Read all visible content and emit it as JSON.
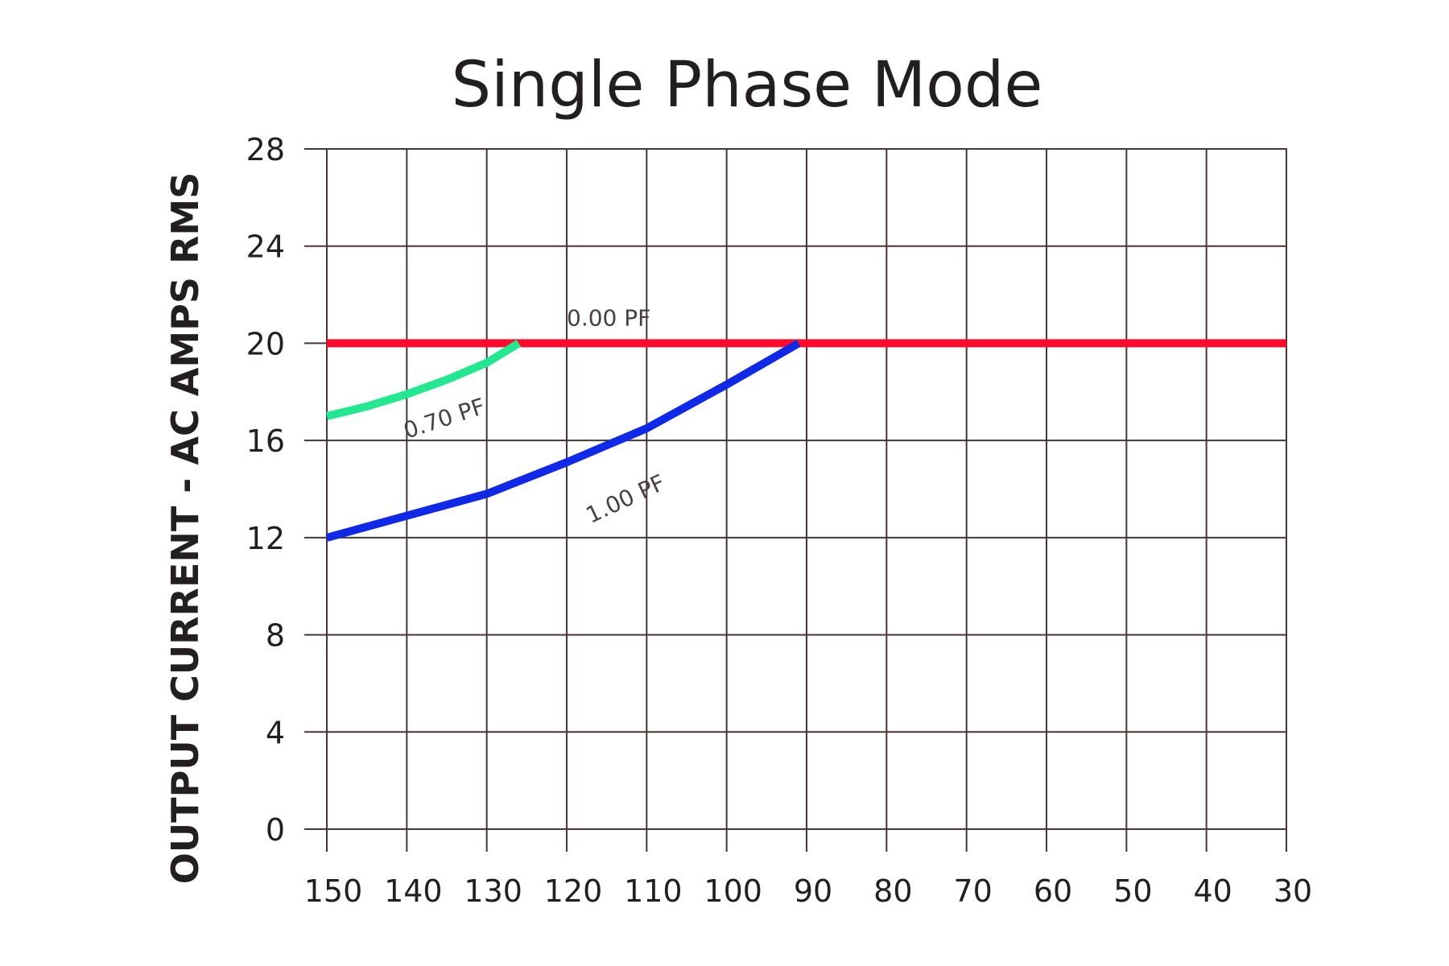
{
  "chart_data": {
    "type": "line",
    "title": "Single Phase Mode",
    "xlabel": "",
    "ylabel": "OUTPUT CURRENT - AC AMPS RMS",
    "xlim": [
      150,
      30
    ],
    "ylim": [
      0,
      28
    ],
    "x_ticks": [
      150,
      140,
      130,
      120,
      110,
      100,
      90,
      80,
      70,
      60,
      50,
      40,
      30
    ],
    "y_ticks": [
      0,
      4,
      8,
      12,
      16,
      20,
      24,
      28
    ],
    "grid": true,
    "legend": "none",
    "series": [
      {
        "name": "0.00  PF",
        "color": "#ff0a2a",
        "points": [
          [
            150,
            20
          ],
          [
            30,
            20
          ]
        ]
      },
      {
        "name": "0.70  PF",
        "color": "#23e88f",
        "points": [
          [
            150,
            17
          ],
          [
            145,
            17.4
          ],
          [
            140,
            17.9
          ],
          [
            135,
            18.5
          ],
          [
            130,
            19.2
          ],
          [
            126,
            20
          ]
        ]
      },
      {
        "name": "1.00  PF",
        "color": "#1029e8",
        "points": [
          [
            150,
            12
          ],
          [
            140,
            12.9
          ],
          [
            130,
            13.8
          ],
          [
            120,
            15.1
          ],
          [
            110,
            16.5
          ],
          [
            100,
            18.3
          ],
          [
            91,
            20
          ]
        ]
      }
    ]
  }
}
